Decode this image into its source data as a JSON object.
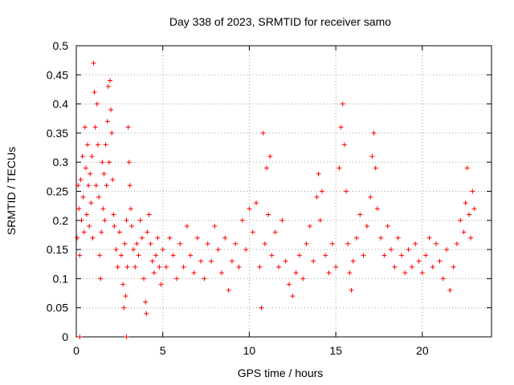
{
  "chart_data": {
    "type": "scatter",
    "title": "Day 338 of 2023, SRMTID for receiver samo",
    "xlabel": "GPS time / hours",
    "ylabel": "SRMTID / TECUs",
    "xlim": [
      0,
      24
    ],
    "ylim": [
      0,
      0.5
    ],
    "xticks": [
      0,
      5,
      10,
      15,
      20
    ],
    "yticks": [
      0,
      0.05,
      0.1,
      0.15,
      0.2,
      0.25,
      0.3,
      0.35,
      0.4,
      0.45,
      0.5
    ],
    "ytick_labels": [
      "0",
      "0.05",
      "0.1",
      "0.15",
      "0.2",
      "0.25",
      "0.3",
      "0.35",
      "0.4",
      "0.45",
      "0.5"
    ],
    "grid": true,
    "marker": "+",
    "color": "#ff0000",
    "series": [
      {
        "name": "SRMTID",
        "points": [
          [
            0.05,
            0.17
          ],
          [
            0.1,
            0.26
          ],
          [
            0.15,
            0.22
          ],
          [
            0.2,
            0.14
          ],
          [
            0.25,
            0.27
          ],
          [
            0.3,
            0.2
          ],
          [
            0.35,
            0.31
          ],
          [
            0.4,
            0.24
          ],
          [
            0.45,
            0.18
          ],
          [
            0.5,
            0.36
          ],
          [
            0.55,
            0.29
          ],
          [
            0.6,
            0.21
          ],
          [
            0.65,
            0.33
          ],
          [
            0.7,
            0.26
          ],
          [
            0.75,
            0.19
          ],
          [
            0.8,
            0.28
          ],
          [
            0.85,
            0.23
          ],
          [
            0.9,
            0.31
          ],
          [
            0.95,
            0.17
          ],
          [
            1.0,
            0.47
          ],
          [
            1.05,
            0.42
          ],
          [
            1.1,
            0.36
          ],
          [
            1.15,
            0.26
          ],
          [
            1.2,
            0.4
          ],
          [
            1.25,
            0.33
          ],
          [
            1.3,
            0.24
          ],
          [
            1.35,
            0.14
          ],
          [
            1.4,
            0.1
          ],
          [
            1.45,
            0.18
          ],
          [
            1.5,
            0.3
          ],
          [
            1.55,
            0.22
          ],
          [
            1.6,
            0.28
          ],
          [
            1.65,
            0.2
          ],
          [
            1.7,
            0.33
          ],
          [
            1.75,
            0.26
          ],
          [
            1.8,
            0.37
          ],
          [
            1.85,
            0.43
          ],
          [
            1.9,
            0.3
          ],
          [
            1.95,
            0.44
          ],
          [
            2.0,
            0.39
          ],
          [
            2.05,
            0.35
          ],
          [
            2.1,
            0.27
          ],
          [
            2.15,
            0.21
          ],
          [
            2.2,
            0.19
          ],
          [
            2.3,
            0.15
          ],
          [
            2.4,
            0.12
          ],
          [
            2.5,
            0.18
          ],
          [
            2.6,
            0.14
          ],
          [
            2.7,
            0.09
          ],
          [
            2.75,
            0.05
          ],
          [
            2.8,
            0.16
          ],
          [
            2.85,
            0.07
          ],
          [
            2.9,
            0.2
          ],
          [
            2.95,
            0.12
          ],
          [
            3.0,
            0.36
          ],
          [
            3.05,
            0.3
          ],
          [
            3.1,
            0.26
          ],
          [
            3.15,
            0.22
          ],
          [
            3.2,
            0.19
          ],
          [
            3.3,
            0.15
          ],
          [
            3.4,
            0.12
          ],
          [
            3.5,
            0.16
          ],
          [
            3.6,
            0.14
          ],
          [
            3.7,
            0.2
          ],
          [
            3.8,
            0.17
          ],
          [
            3.9,
            0.1
          ],
          [
            4.0,
            0.06
          ],
          [
            4.05,
            0.04
          ],
          [
            4.1,
            0.18
          ],
          [
            4.2,
            0.21
          ],
          [
            4.3,
            0.16
          ],
          [
            4.4,
            0.13
          ],
          [
            4.5,
            0.11
          ],
          [
            4.6,
            0.14
          ],
          [
            4.7,
            0.17
          ],
          [
            4.8,
            0.12
          ],
          [
            4.9,
            0.09
          ],
          [
            5.0,
            0.15
          ],
          [
            5.2,
            0.12
          ],
          [
            5.4,
            0.17
          ],
          [
            5.6,
            0.14
          ],
          [
            5.8,
            0.1
          ],
          [
            6.0,
            0.16
          ],
          [
            6.2,
            0.12
          ],
          [
            6.4,
            0.19
          ],
          [
            6.6,
            0.14
          ],
          [
            6.8,
            0.11
          ],
          [
            7.0,
            0.17
          ],
          [
            7.2,
            0.13
          ],
          [
            7.4,
            0.1
          ],
          [
            7.6,
            0.16
          ],
          [
            7.8,
            0.13
          ],
          [
            8.0,
            0.19
          ],
          [
            8.2,
            0.15
          ],
          [
            8.4,
            0.11
          ],
          [
            8.6,
            0.17
          ],
          [
            8.8,
            0.08
          ],
          [
            9.0,
            0.13
          ],
          [
            9.2,
            0.16
          ],
          [
            9.4,
            0.12
          ],
          [
            9.6,
            0.2
          ],
          [
            9.8,
            0.15
          ],
          [
            10.0,
            0.22
          ],
          [
            10.2,
            0.18
          ],
          [
            10.4,
            0.23
          ],
          [
            10.6,
            0.12
          ],
          [
            10.7,
            0.05
          ],
          [
            10.8,
            0.35
          ],
          [
            10.9,
            0.16
          ],
          [
            11.0,
            0.29
          ],
          [
            11.1,
            0.21
          ],
          [
            11.2,
            0.31
          ],
          [
            11.3,
            0.14
          ],
          [
            11.5,
            0.18
          ],
          [
            11.7,
            0.12
          ],
          [
            11.9,
            0.2
          ],
          [
            12.1,
            0.13
          ],
          [
            12.3,
            0.09
          ],
          [
            12.5,
            0.07
          ],
          [
            12.7,
            0.11
          ],
          [
            12.9,
            0.14
          ],
          [
            13.1,
            0.1
          ],
          [
            13.3,
            0.16
          ],
          [
            13.5,
            0.19
          ],
          [
            13.7,
            0.13
          ],
          [
            13.9,
            0.24
          ],
          [
            14.0,
            0.28
          ],
          [
            14.1,
            0.2
          ],
          [
            14.2,
            0.25
          ],
          [
            14.4,
            0.14
          ],
          [
            14.6,
            0.11
          ],
          [
            14.8,
            0.16
          ],
          [
            15.0,
            0.12
          ],
          [
            15.2,
            0.29
          ],
          [
            15.3,
            0.36
          ],
          [
            15.4,
            0.4
          ],
          [
            15.5,
            0.33
          ],
          [
            15.6,
            0.25
          ],
          [
            15.7,
            0.16
          ],
          [
            15.8,
            0.11
          ],
          [
            15.9,
            0.08
          ],
          [
            16.0,
            0.13
          ],
          [
            16.2,
            0.17
          ],
          [
            16.4,
            0.21
          ],
          [
            16.6,
            0.14
          ],
          [
            16.8,
            0.19
          ],
          [
            17.0,
            0.24
          ],
          [
            17.1,
            0.31
          ],
          [
            17.2,
            0.35
          ],
          [
            17.3,
            0.29
          ],
          [
            17.4,
            0.22
          ],
          [
            17.6,
            0.17
          ],
          [
            17.8,
            0.14
          ],
          [
            18.0,
            0.19
          ],
          [
            18.2,
            0.15
          ],
          [
            18.4,
            0.12
          ],
          [
            18.6,
            0.17
          ],
          [
            18.8,
            0.14
          ],
          [
            19.0,
            0.11
          ],
          [
            19.2,
            0.15
          ],
          [
            19.4,
            0.12
          ],
          [
            19.6,
            0.16
          ],
          [
            19.8,
            0.13
          ],
          [
            20.0,
            0.11
          ],
          [
            20.2,
            0.14
          ],
          [
            20.4,
            0.17
          ],
          [
            20.6,
            0.12
          ],
          [
            20.8,
            0.16
          ],
          [
            21.0,
            0.13
          ],
          [
            21.2,
            0.1
          ],
          [
            21.4,
            0.15
          ],
          [
            21.6,
            0.08
          ],
          [
            21.8,
            0.12
          ],
          [
            22.0,
            0.16
          ],
          [
            22.2,
            0.2
          ],
          [
            22.4,
            0.18
          ],
          [
            22.5,
            0.23
          ],
          [
            22.6,
            0.29
          ],
          [
            22.7,
            0.21
          ],
          [
            22.8,
            0.17
          ],
          [
            22.9,
            0.25
          ],
          [
            23.0,
            0.22
          ],
          [
            0.2,
            0.0
          ],
          [
            2.9,
            0.0
          ]
        ]
      }
    ]
  }
}
